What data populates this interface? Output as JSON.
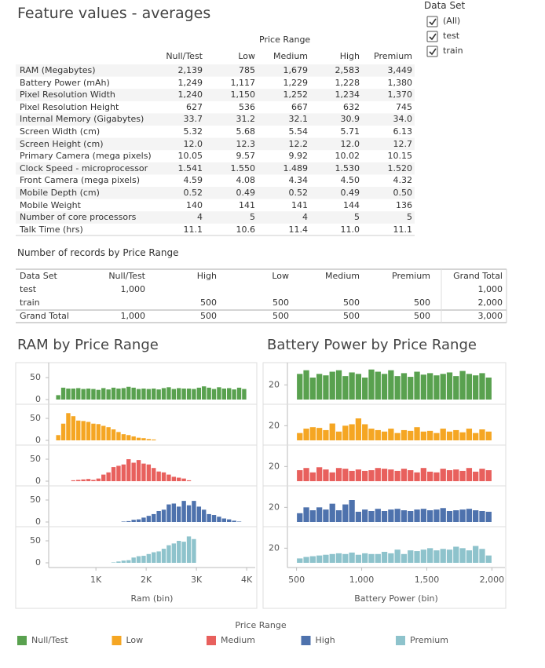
{
  "title": "Feature values - averages",
  "filter": {
    "title": "Data Set",
    "options": [
      {
        "label": "(All)",
        "checked": true
      },
      {
        "label": "test",
        "checked": true
      },
      {
        "label": "train",
        "checked": true
      }
    ]
  },
  "table1": {
    "header": "Price Range",
    "columns": [
      "Null/Test",
      "Low",
      "Medium",
      "High",
      "Premium"
    ],
    "rows": [
      {
        "label": "RAM (Megabytes)",
        "values": [
          "2,139",
          "785",
          "1,679",
          "2,583",
          "3,449"
        ]
      },
      {
        "label": "Battery Power (mAh)",
        "values": [
          "1,249",
          "1,117",
          "1,229",
          "1,228",
          "1,380"
        ]
      },
      {
        "label": "Pixel Resolution Width",
        "values": [
          "1,240",
          "1,150",
          "1,252",
          "1,234",
          "1,370"
        ]
      },
      {
        "label": "Pixel Resolution Height",
        "values": [
          "627",
          "536",
          "667",
          "632",
          "745"
        ]
      },
      {
        "label": "Internal Memory (Gigabytes)",
        "values": [
          "33.7",
          "31.2",
          "32.1",
          "30.9",
          "34.0"
        ]
      },
      {
        "label": "Screen Width (cm)",
        "values": [
          "5.32",
          "5.68",
          "5.54",
          "5.71",
          "6.13"
        ]
      },
      {
        "label": "Screen Height (cm)",
        "values": [
          "12.0",
          "12.3",
          "12.2",
          "12.0",
          "12.7"
        ]
      },
      {
        "label": "Primary Camera (mega pixels)",
        "values": [
          "10.05",
          "9.57",
          "9.92",
          "10.02",
          "10.15"
        ]
      },
      {
        "label": "Clock Speed - microprocessor",
        "values": [
          "1.541",
          "1.550",
          "1.489",
          "1.530",
          "1.520"
        ]
      },
      {
        "label": "Front Camera (mega pixels)",
        "values": [
          "4.59",
          "4.08",
          "4.34",
          "4.50",
          "4.32"
        ]
      },
      {
        "label": "Mobile Depth (cm)",
        "values": [
          "0.52",
          "0.49",
          "0.52",
          "0.49",
          "0.50"
        ]
      },
      {
        "label": "Mobile Weight",
        "values": [
          "140",
          "141",
          "141",
          "144",
          "136"
        ]
      },
      {
        "label": "Number of core processors",
        "values": [
          "4",
          "5",
          "4",
          "5",
          "5"
        ]
      },
      {
        "label": "Talk Time (hrs)",
        "values": [
          "11.1",
          "10.6",
          "11.4",
          "11.0",
          "11.1"
        ]
      }
    ]
  },
  "table2": {
    "title": "Number of records by Price Range",
    "columns": [
      "Data Set",
      "Null/Test",
      "High",
      "Low",
      "Medium",
      "Premium",
      "Grand Total"
    ],
    "rows": [
      [
        "test",
        "1,000",
        null,
        null,
        null,
        null,
        "1,000"
      ],
      [
        "train",
        null,
        "500",
        "500",
        "500",
        "500",
        "2,000"
      ],
      [
        "Grand Total",
        "1,000",
        "500",
        "500",
        "500",
        "500",
        "3,000"
      ]
    ]
  },
  "chart_data": [
    {
      "type": "histogram",
      "title": "RAM by Price Range",
      "x_label": "Ram (bin)",
      "legend_title": "Price Range",
      "bins": [
        200,
        300,
        400,
        500,
        600,
        700,
        800,
        900,
        1000,
        1100,
        1200,
        1300,
        1400,
        1500,
        1600,
        1700,
        1800,
        1900,
        2000,
        2100,
        2200,
        2300,
        2400,
        2500,
        2600,
        2700,
        2800,
        2900,
        3000,
        3100,
        3200,
        3300,
        3400,
        3500,
        3600,
        3700,
        3800,
        3900,
        4000
      ],
      "xlim": [
        60,
        4170
      ],
      "xticks": [
        {
          "value": 1000,
          "label": "1K"
        },
        {
          "value": 2000,
          "label": "2K"
        },
        {
          "value": 3000,
          "label": "3K"
        },
        {
          "value": 4000,
          "label": "4K"
        }
      ],
      "ylim": [
        0,
        75
      ],
      "yticks": [
        0,
        50
      ],
      "series": [
        {
          "name": "Null/Test",
          "color": "#59a14f",
          "values": [
            10,
            27,
            25,
            25,
            26,
            24,
            25,
            24,
            22,
            26,
            23,
            27,
            25,
            26,
            29,
            27,
            24,
            25,
            24,
            25,
            23,
            26,
            28,
            24,
            26,
            25,
            25,
            24,
            27,
            30,
            27,
            24,
            28,
            25,
            26,
            23,
            27,
            24
          ]
        },
        {
          "name": "Low",
          "color": "#f5a623",
          "values": [
            12,
            38,
            62,
            55,
            45,
            44,
            42,
            38,
            37,
            33,
            30,
            25,
            19,
            14,
            12,
            9,
            6,
            5,
            3,
            2,
            0,
            0,
            0,
            0,
            0,
            0,
            0,
            0,
            0,
            0,
            0,
            0,
            0,
            0,
            0,
            0,
            0,
            0
          ]
        },
        {
          "name": "Medium",
          "color": "#e8605d",
          "values": [
            0,
            0,
            0,
            2,
            3,
            4,
            5,
            3,
            6,
            15,
            20,
            32,
            35,
            38,
            50,
            42,
            48,
            40,
            38,
            30,
            22,
            20,
            15,
            10,
            8,
            6,
            2,
            0,
            0,
            0,
            0,
            0,
            0,
            0,
            0,
            0,
            0,
            0
          ]
        },
        {
          "name": "High",
          "color": "#4e72ad",
          "values": [
            0,
            0,
            0,
            0,
            0,
            0,
            0,
            0,
            0,
            0,
            0,
            0,
            0,
            1,
            2,
            5,
            6,
            10,
            14,
            18,
            25,
            28,
            40,
            42,
            35,
            48,
            38,
            48,
            35,
            28,
            18,
            16,
            12,
            8,
            6,
            3,
            1,
            0
          ]
        },
        {
          "name": "Premium",
          "color": "#8ec3cc",
          "values": [
            0,
            0,
            0,
            0,
            0,
            0,
            0,
            0,
            0,
            0,
            0,
            1,
            3,
            5,
            6,
            12,
            15,
            16,
            20,
            24,
            26,
            32,
            40,
            44,
            50,
            48,
            60,
            54,
            0,
            0,
            0,
            0,
            0,
            0,
            0,
            0,
            0,
            0
          ]
        }
      ]
    },
    {
      "type": "histogram",
      "title": "Battery Power by Price Range",
      "x_label": "Battery Power (bin)",
      "bins": [
        500,
        550,
        600,
        650,
        700,
        750,
        800,
        850,
        900,
        950,
        1000,
        1050,
        1100,
        1150,
        1200,
        1250,
        1300,
        1350,
        1400,
        1450,
        1500,
        1550,
        1600,
        1650,
        1700,
        1750,
        1800,
        1850,
        1900,
        1950,
        2000
      ],
      "xlim": [
        430,
        2100
      ],
      "xticks": [
        500,
        {
          "value": 1000,
          "label": "1,000"
        },
        {
          "value": 1500,
          "label": "1,500"
        },
        {
          "value": 2000,
          "label": "2,000"
        }
      ],
      "ylim": [
        0,
        45
      ],
      "yticks": [
        20
      ],
      "series": [
        {
          "color": "#59a14f",
          "values": [
            35,
            40,
            30,
            35,
            33,
            38,
            40,
            32,
            37,
            35,
            30,
            41,
            38,
            35,
            40,
            32,
            36,
            31,
            38,
            34,
            36,
            33,
            35,
            37,
            32,
            39,
            35,
            33,
            36,
            30
          ]
        },
        {
          "color": "#f5a623",
          "values": [
            10,
            16,
            18,
            17,
            14,
            23,
            12,
            20,
            22,
            30,
            22,
            16,
            14,
            12,
            16,
            10,
            14,
            13,
            18,
            12,
            13,
            10,
            16,
            12,
            14,
            11,
            16,
            10,
            15,
            12
          ]
        },
        {
          "color": "#e8605d",
          "values": [
            15,
            18,
            12,
            19,
            16,
            12,
            18,
            17,
            14,
            16,
            14,
            15,
            18,
            17,
            16,
            14,
            17,
            15,
            12,
            18,
            13,
            12,
            17,
            15,
            16,
            14,
            18,
            13,
            17,
            15
          ]
        },
        {
          "color": "#4e72ad",
          "values": [
            12,
            20,
            16,
            20,
            17,
            25,
            16,
            24,
            30,
            14,
            17,
            15,
            18,
            15,
            17,
            18,
            16,
            15,
            17,
            18,
            16,
            17,
            19,
            15,
            16,
            17,
            18,
            16,
            15,
            14
          ]
        },
        {
          "color": "#8ec3cc",
          "values": [
            6,
            8,
            9,
            10,
            11,
            12,
            13,
            12,
            14,
            11,
            13,
            12,
            12,
            15,
            13,
            18,
            12,
            17,
            16,
            18,
            20,
            17,
            19,
            18,
            22,
            20,
            17,
            23,
            19,
            10
          ]
        }
      ]
    }
  ]
}
